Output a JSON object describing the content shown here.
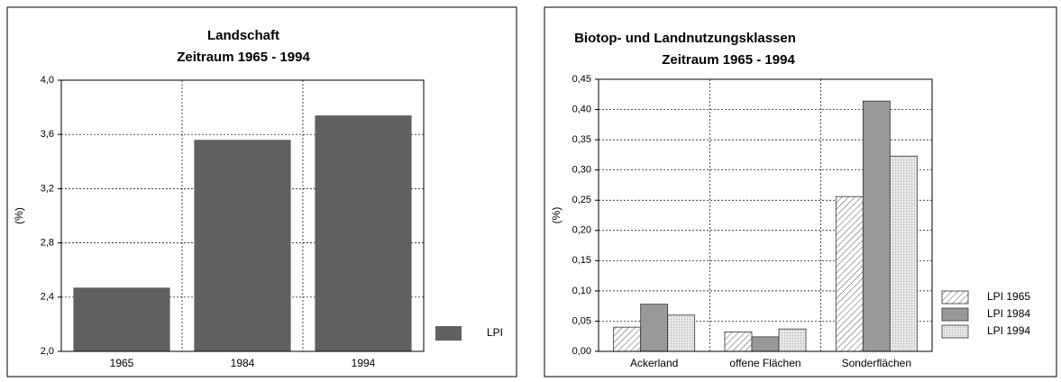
{
  "chart_data": [
    {
      "type": "bar",
      "title": "Landschaft",
      "subtitle": "Zeitraum 1965 - 1994",
      "y_label": "(%)",
      "categories": [
        "1965",
        "1984",
        "1994"
      ],
      "series": [
        {
          "name": "LPI",
          "color": "#606060",
          "values": [
            2.47,
            3.56,
            3.74
          ]
        }
      ],
      "ylim": [
        2.0,
        4.0
      ],
      "yticks": [
        {
          "value": 2.0,
          "label": "2,0"
        },
        {
          "value": 2.4,
          "label": "2,4"
        },
        {
          "value": 2.8,
          "label": "2,8"
        },
        {
          "value": 3.2,
          "label": "3,2"
        },
        {
          "value": 3.6,
          "label": "3,6"
        },
        {
          "value": 4.0,
          "label": "4,0"
        }
      ],
      "grid": true,
      "legend": "right"
    },
    {
      "type": "bar",
      "title": "Biotop- und Landnutzungsklassen",
      "subtitle": "Zeitraum 1965 - 1994",
      "y_label": "(%)",
      "categories": [
        "Ackerland",
        "offene Flächen",
        "Sonderflächen"
      ],
      "series": [
        {
          "name": "LPI 1965",
          "color": "#ffffff",
          "pattern": "hatch",
          "values": [
            0.04,
            0.032,
            0.256
          ]
        },
        {
          "name": "LPI 1984",
          "color": "#999999",
          "values": [
            0.078,
            0.024,
            0.414
          ]
        },
        {
          "name": "LPI 1994",
          "color": "#e6e6e6",
          "pattern": "dots",
          "values": [
            0.06,
            0.037,
            0.323
          ]
        }
      ],
      "ylim": [
        0,
        0.45
      ],
      "yticks": [
        {
          "value": 0,
          "label": "0,00"
        },
        {
          "value": 0.05,
          "label": "0,05"
        },
        {
          "value": 0.1,
          "label": "0,10"
        },
        {
          "value": 0.15,
          "label": "0,15"
        },
        {
          "value": 0.2,
          "label": "0,20"
        },
        {
          "value": 0.25,
          "label": "0,25"
        },
        {
          "value": 0.3,
          "label": "0,30"
        },
        {
          "value": 0.35,
          "label": "0,35"
        },
        {
          "value": 0.4,
          "label": "0,40"
        },
        {
          "value": 0.45,
          "label": "0,45"
        }
      ],
      "grid": true,
      "legend": "right"
    }
  ]
}
